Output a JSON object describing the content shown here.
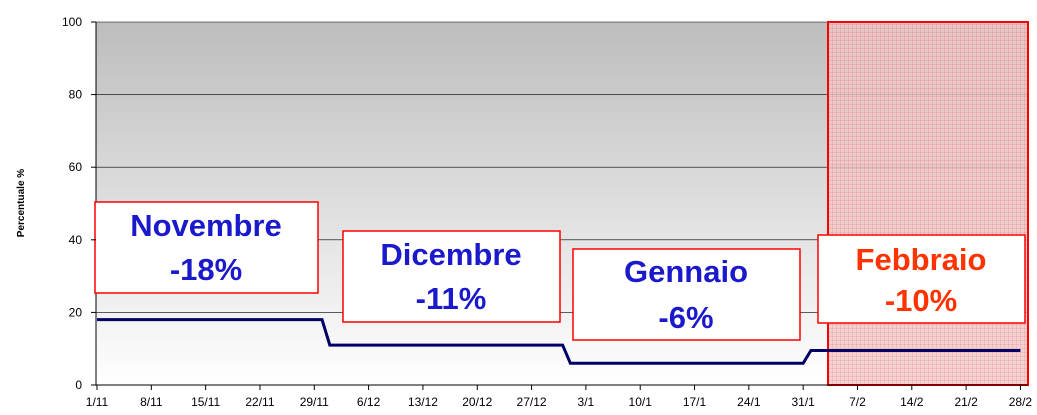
{
  "chart_data": {
    "type": "line",
    "y_label": "Percentuale %",
    "x": [
      "1/11",
      "30/11",
      "1/12",
      "31/12",
      "1/1",
      "31/1",
      "1/2",
      "28/2"
    ],
    "series": [
      {
        "name": "Percentuale",
        "color": "#000066",
        "values": [
          18,
          18,
          11,
          11,
          6,
          6,
          9.5,
          9.5
        ]
      }
    ],
    "ylim": [
      0,
      100
    ],
    "yticks": [
      0,
      20,
      40,
      60,
      80,
      100
    ],
    "grid": true,
    "xticks": [
      "1/11",
      "8/11",
      "15/11",
      "22/11",
      "29/11",
      "6/12",
      "13/12",
      "20/12",
      "27/12",
      "3/1",
      "10/1",
      "17/1",
      "24/1",
      "31/1",
      "7/2",
      "14/2",
      "21/2",
      "28/2"
    ],
    "annotations": [
      {
        "lines": [
          "Novembre",
          "-18%"
        ],
        "color": "#1a1acc"
      },
      {
        "lines": [
          "Dicembre",
          "-11%"
        ],
        "color": "#1a1acc"
      },
      {
        "lines": [
          "Gennaio",
          "-6%"
        ],
        "color": "#1a1acc"
      },
      {
        "lines": [
          "Febbraio",
          "-10%"
        ],
        "color": "#ff3300"
      }
    ]
  }
}
